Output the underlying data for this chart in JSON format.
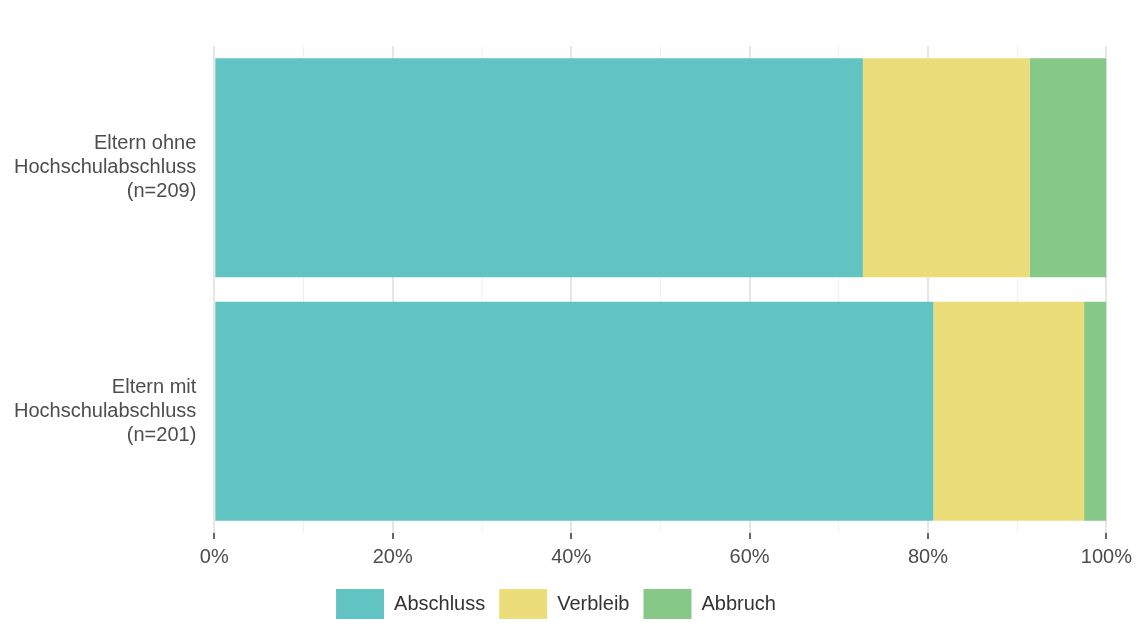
{
  "chart_data": {
    "type": "bar",
    "orientation": "horizontal",
    "stacked": true,
    "categories": [
      "Eltern ohne\nHochschulabschluss\n(n=209)",
      "Eltern mit\nHochschulabschluss\n(n=201)"
    ],
    "series": [
      {
        "name": "Abschluss",
        "color": "#62c3c3",
        "values": [
          72.7,
          80.6
        ]
      },
      {
        "name": "Verbleib",
        "color": "#ecdd7b",
        "values": [
          18.7,
          16.9
        ]
      },
      {
        "name": "Abbruch",
        "color": "#86c887",
        "values": [
          8.6,
          2.5
        ]
      }
    ],
    "xlim": [
      0,
      100
    ],
    "xticks": [
      {
        "value": 0,
        "label": "0%"
      },
      {
        "value": 20,
        "label": "20%"
      },
      {
        "value": 40,
        "label": "40%"
      },
      {
        "value": 60,
        "label": "60%"
      },
      {
        "value": 80,
        "label": "80%"
      },
      {
        "value": 100,
        "label": "100%"
      }
    ],
    "grid": "x",
    "legend": "bottom"
  }
}
